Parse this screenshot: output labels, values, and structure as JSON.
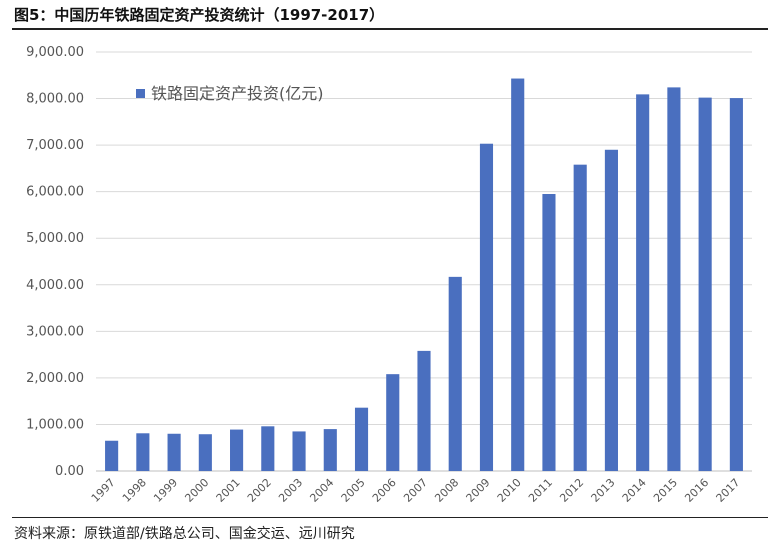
{
  "figure": {
    "title": "图5：中国历年铁路固定资产投资统计（1997-2017）",
    "source": "资料来源：原铁道部/铁路总公司、国金交运、远川研究"
  },
  "colors": {
    "bar": "#4a6fbf",
    "grid": "#d9d9d9",
    "axis": "#bfbfbf"
  },
  "chart_data": {
    "type": "bar",
    "categories": [
      "1997",
      "1998",
      "1999",
      "2000",
      "2001",
      "2002",
      "2003",
      "2004",
      "2005",
      "2006",
      "2007",
      "2008",
      "2009",
      "2010",
      "2011",
      "2012",
      "2013",
      "2014",
      "2015",
      "2016",
      "2017"
    ],
    "series": [
      {
        "name": "铁路固定资产投资(亿元)",
        "values": [
          650,
          810,
          800,
          790,
          890,
          960,
          850,
          900,
          1360,
          2080,
          2580,
          4170,
          7030,
          8430,
          5950,
          6580,
          6900,
          8090,
          8240,
          8020,
          8010
        ]
      }
    ],
    "y_ticks": [
      "0.00",
      "1,000.00",
      "2,000.00",
      "3,000.00",
      "4,000.00",
      "5,000.00",
      "6,000.00",
      "7,000.00",
      "8,000.00",
      "9,000.00"
    ],
    "ylim": [
      0,
      9000
    ],
    "grid": true,
    "legend_position": "top-left"
  }
}
